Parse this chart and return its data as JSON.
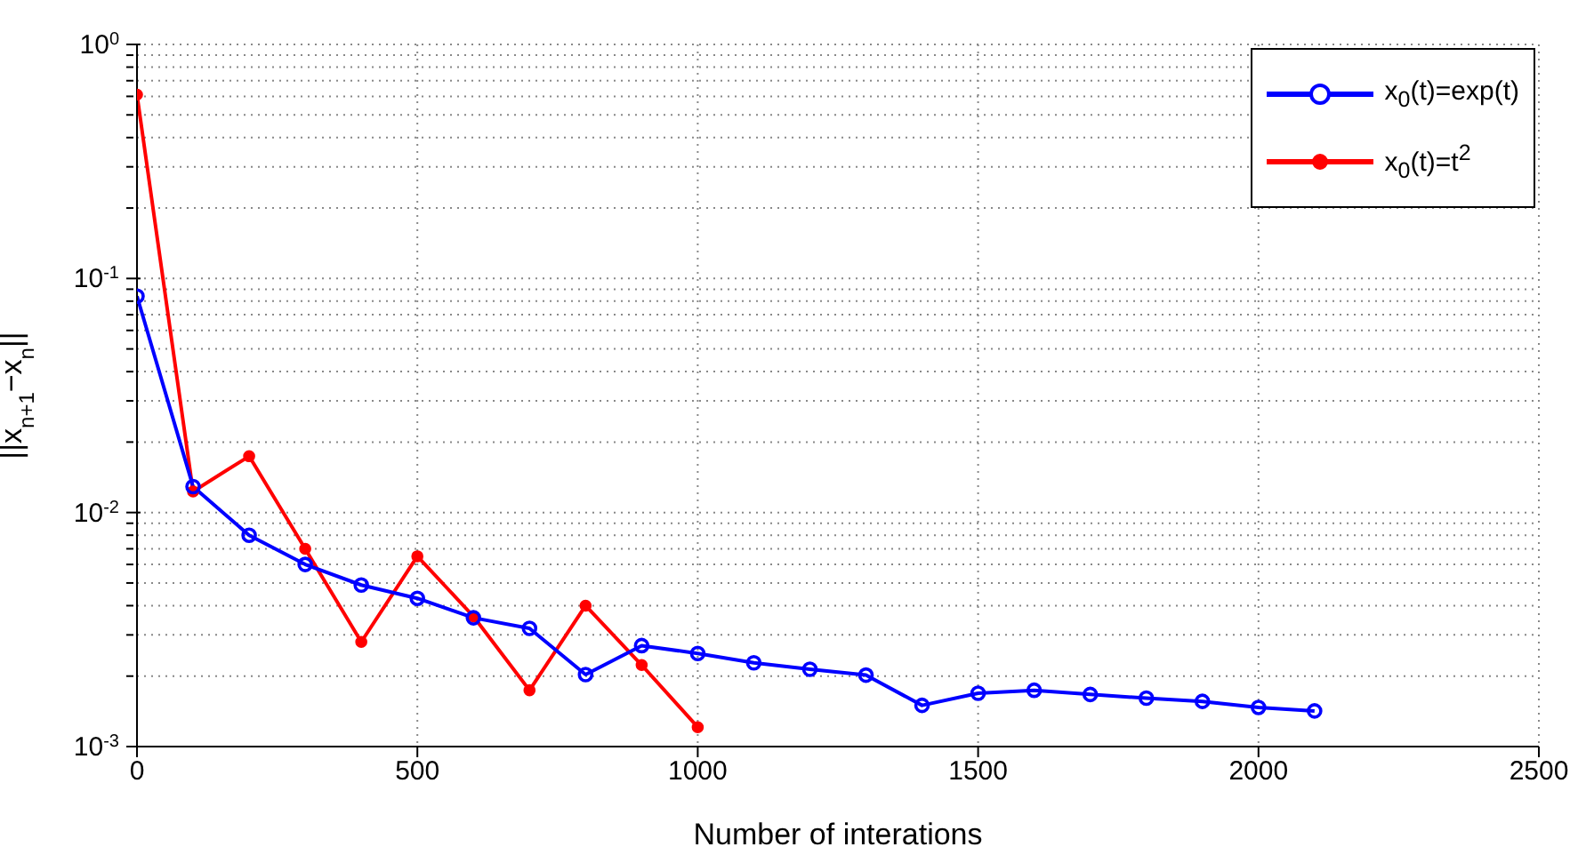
{
  "chart_data": {
    "type": "line",
    "xlabel": "Number of interations",
    "ylabel": "||x$_{n+1}$−x$_{n}$||",
    "log": "y",
    "grid": true,
    "legend": "top right",
    "marker": "circle",
    "line_style": "solid",
    "xlim": [
      0,
      2500
    ],
    "xticks": [
      0,
      500,
      1000,
      1500,
      2000,
      2500
    ],
    "ylim": [
      0.001,
      1
    ],
    "yticks": [
      {
        "value": 0.001,
        "label": "10$^{-3}$"
      },
      {
        "value": 0.002,
        "label": null
      },
      {
        "value": 0.003,
        "label": null
      },
      {
        "value": 0.004,
        "label": null
      },
      {
        "value": 0.005,
        "label": null
      },
      {
        "value": 0.006,
        "label": null
      },
      {
        "value": 0.007,
        "label": null
      },
      {
        "value": 0.008,
        "label": null
      },
      {
        "value": 0.009,
        "label": null
      },
      {
        "value": 0.01,
        "label": "10$^{-2}$"
      },
      {
        "value": 0.02,
        "label": null
      },
      {
        "value": 0.03,
        "label": null
      },
      {
        "value": 0.04,
        "label": null
      },
      {
        "value": 0.05,
        "label": null
      },
      {
        "value": 0.06,
        "label": null
      },
      {
        "value": 0.07,
        "label": null
      },
      {
        "value": 0.08,
        "label": null
      },
      {
        "value": 0.09,
        "label": null
      },
      {
        "value": 0.1,
        "label": "10$^{-1}$"
      },
      {
        "value": 0.2,
        "label": null
      },
      {
        "value": 0.3,
        "label": null
      },
      {
        "value": 0.4,
        "label": null
      },
      {
        "value": 0.5,
        "label": null
      },
      {
        "value": 0.6,
        "label": null
      },
      {
        "value": 0.7,
        "label": null
      },
      {
        "value": 0.8,
        "label": null
      },
      {
        "value": 0.9,
        "label": null
      },
      {
        "value": 1,
        "label": "10$^{0}$"
      }
    ],
    "series": [
      {
        "name": "x$_{0}$(t)=exp(t)",
        "color": "#0000ff",
        "x": [
          0,
          100,
          200,
          300,
          400,
          500,
          600,
          700,
          800,
          900,
          1000,
          1100,
          1200,
          1300,
          1400,
          1500,
          1600,
          1700,
          1800,
          1900,
          2000,
          2100
        ],
        "values": [
          0.084,
          0.0129,
          0.008,
          0.006,
          0.0049,
          0.0043,
          0.00355,
          0.0032,
          0.00203,
          0.0027,
          0.0025,
          0.00228,
          0.00214,
          0.00202,
          0.0015,
          0.00169,
          0.00174,
          0.00167,
          0.00161,
          0.00156,
          0.00147,
          0.00142
        ]
      },
      {
        "name": "x$_{0}$(t)=t$^{2}$",
        "color": "#ff0000",
        "x": [
          0,
          100,
          200,
          300,
          400,
          500,
          600,
          700,
          800,
          900,
          1000
        ],
        "values": [
          0.61,
          0.0123,
          0.0174,
          0.007,
          0.0028,
          0.0065,
          0.0036,
          0.00174,
          0.004,
          0.00223,
          0.00121
        ]
      }
    ]
  }
}
